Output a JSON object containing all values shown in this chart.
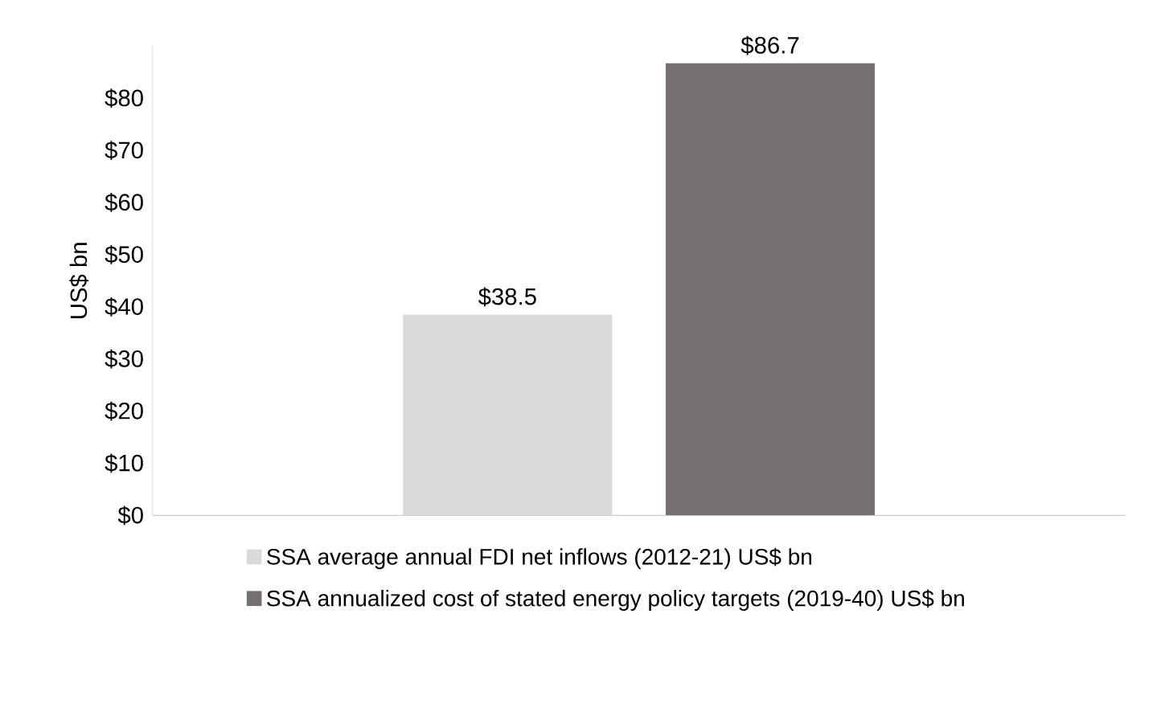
{
  "chart_data": {
    "type": "bar",
    "ylabel": "US$ bn",
    "categories": [
      null
    ],
    "series": [
      {
        "name": "SSA average annual FDI net inflows (2012-21) US$ bn",
        "color": "#d9d9d9",
        "values": [
          38.5
        ],
        "value_labels": [
          "$38.5"
        ]
      },
      {
        "name": "SSA annualized cost of stated energy policy targets (2019-40) US$ bn",
        "color": "#767171",
        "values": [
          86.7
        ],
        "value_labels": [
          "$86.7"
        ]
      }
    ],
    "yticks": [
      {
        "value": 0,
        "label": "$0"
      },
      {
        "value": 10,
        "label": "$10"
      },
      {
        "value": 20,
        "label": "$20"
      },
      {
        "value": 30,
        "label": "$30"
      },
      {
        "value": 40,
        "label": "$40"
      },
      {
        "value": 50,
        "label": "$50"
      },
      {
        "value": 60,
        "label": "$60"
      },
      {
        "value": 70,
        "label": "$70"
      },
      {
        "value": 80,
        "label": "$80"
      }
    ],
    "ylim": [
      0,
      90
    ],
    "grid": false,
    "legend": "bottom"
  }
}
